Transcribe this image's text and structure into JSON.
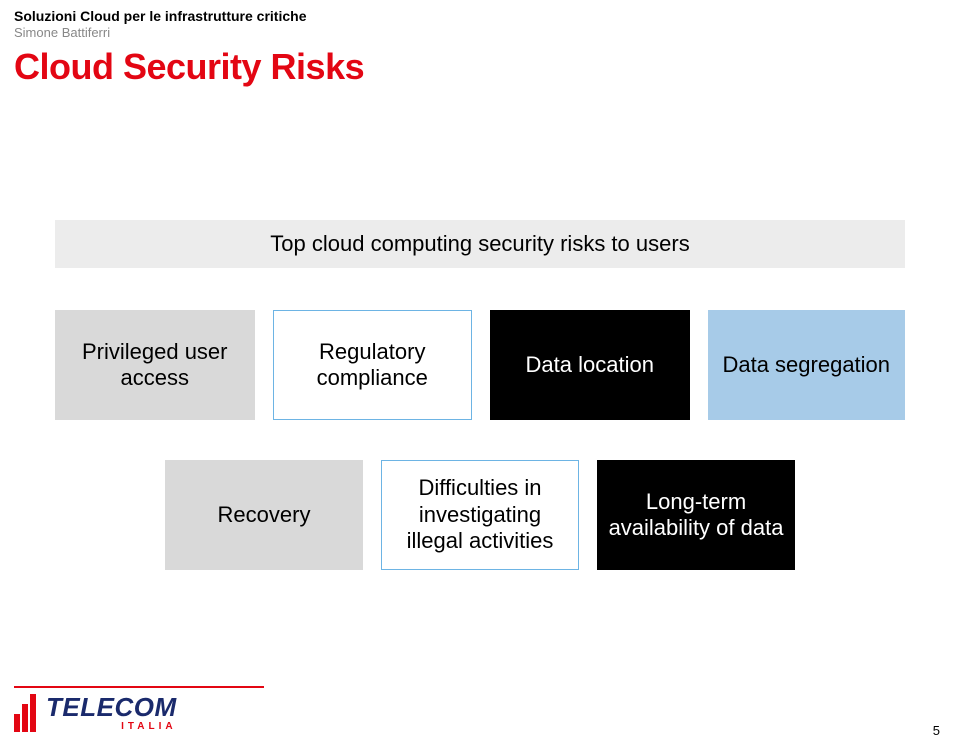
{
  "header": {
    "super": "Soluzioni Cloud per le infrastrutture critiche",
    "author": "Simone Battiferri",
    "title": "Cloud Security Risks"
  },
  "banner": {
    "text": "Top cloud computing security risks to users",
    "bg": "#ececec"
  },
  "rows": {
    "r1": {
      "b1": {
        "text": "Privileged user access",
        "style": "grey"
      },
      "b2": {
        "text": "Regulatory compliance",
        "style": "white"
      },
      "b3": {
        "text": "Data location",
        "style": "black"
      },
      "b4": {
        "text": "Data segregation",
        "style": "blue"
      }
    },
    "r2": {
      "b1": {
        "text": "Recovery",
        "style": "grey"
      },
      "b2": {
        "text": "Difficulties in investigating illegal activities",
        "style": "white"
      },
      "b3": {
        "text": "Long-term availability of data",
        "style": "black"
      }
    }
  },
  "colors": {
    "grey_bg": "#d9d9d9",
    "white_border": "#6db4e4",
    "black_bg": "#000000",
    "blue_bg": "#a7cbe8",
    "accent_red": "#e30613",
    "logo_blue": "#1a2a6c"
  },
  "logo": {
    "main": "TELECOM",
    "sub": "ITALIA"
  },
  "page_number": "5"
}
